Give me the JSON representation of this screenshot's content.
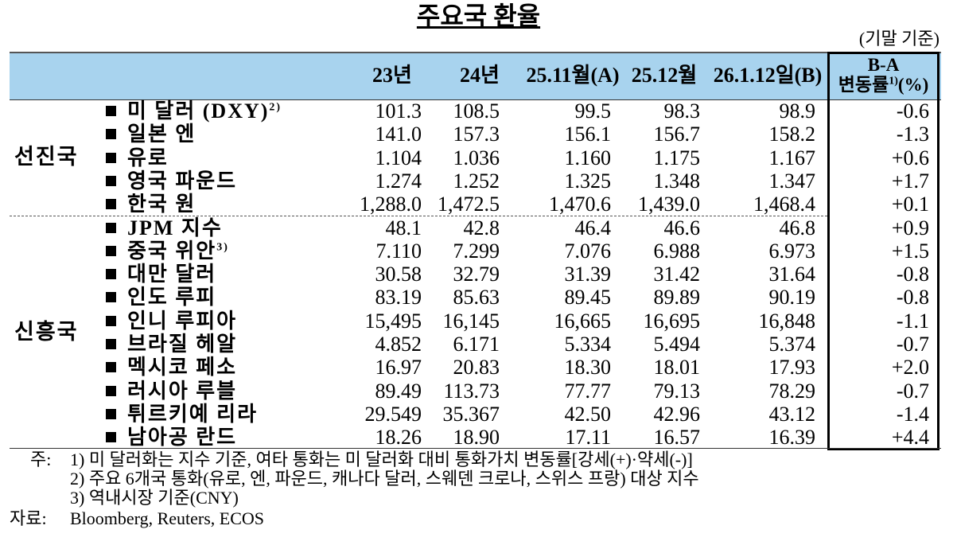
{
  "title": "주요국 환율",
  "unit_note": "(기말 기준)",
  "header": {
    "columns": [
      "23년",
      "24년",
      "25.11월(A)",
      "25.12월",
      "26.1.12일(B)"
    ],
    "change": {
      "line1": "B-A",
      "line2": "변동률",
      "sup": "1)",
      "unit": "(%)"
    }
  },
  "groups": [
    {
      "label": "선진국",
      "rows": [
        {
          "name": "미 달러 (DXY)",
          "sup": "2)",
          "values": [
            "101.3",
            "108.5",
            "99.5",
            "98.3",
            "98.9",
            "-0.6"
          ]
        },
        {
          "name": "일본 엔",
          "values": [
            "141.0",
            "157.3",
            "156.1",
            "156.7",
            "158.2",
            "-1.3"
          ]
        },
        {
          "name": "유로",
          "values": [
            "1.104",
            "1.036",
            "1.160",
            "1.175",
            "1.167",
            "+0.6"
          ]
        },
        {
          "name": "영국 파운드",
          "values": [
            "1.274",
            "1.252",
            "1.325",
            "1.348",
            "1.347",
            "+1.7"
          ]
        },
        {
          "name": "한국 원",
          "values": [
            "1,288.0",
            "1,472.5",
            "1,470.6",
            "1,439.0",
            "1,468.4",
            "+0.1"
          ]
        }
      ]
    },
    {
      "label": "신흥국",
      "rows": [
        {
          "name": "JPM 지수",
          "values": [
            "48.1",
            "42.8",
            "46.4",
            "46.6",
            "46.8",
            "+0.9"
          ]
        },
        {
          "name": "중국 위안",
          "sup": "3)",
          "values": [
            "7.110",
            "7.299",
            "7.076",
            "6.988",
            "6.973",
            "+1.5"
          ]
        },
        {
          "name": "대만 달러",
          "values": [
            "30.58",
            "32.79",
            "31.39",
            "31.42",
            "31.64",
            "-0.8"
          ]
        },
        {
          "name": "인도 루피",
          "values": [
            "83.19",
            "85.63",
            "89.45",
            "89.89",
            "90.19",
            "-0.8"
          ]
        },
        {
          "name": "인니 루피아",
          "values": [
            "15,495",
            "16,145",
            "16,665",
            "16,695",
            "16,848",
            "-1.1"
          ]
        },
        {
          "name": "브라질 헤알",
          "values": [
            "4.852",
            "6.171",
            "5.334",
            "5.494",
            "5.374",
            "-0.7"
          ]
        },
        {
          "name": "멕시코 페소",
          "values": [
            "16.97",
            "20.83",
            "18.30",
            "18.01",
            "17.93",
            "+2.0"
          ]
        },
        {
          "name": "러시아 루블",
          "values": [
            "89.49",
            "113.73",
            "77.77",
            "79.13",
            "78.29",
            "-0.7"
          ]
        },
        {
          "name": "튀르키예 리라",
          "values": [
            "29.549",
            "35.367",
            "42.50",
            "42.96",
            "43.12",
            "-1.4"
          ]
        },
        {
          "name": "남아공 란드",
          "values": [
            "18.26",
            "18.90",
            "17.11",
            "16.57",
            "16.39",
            "+4.4"
          ]
        }
      ]
    }
  ],
  "notes": {
    "prefix": "주:",
    "items": [
      "1) 미 달러화는 지수 기준, 여타 통화는 미 달러화 대비 통화가치 변동률[강세(+)·약세(-)]",
      "2) 주요 6개국 통화(유로, 엔, 파운드, 캐나다 달러, 스웨덴 크로나, 스위스 프랑) 대상 지수",
      "3) 역내시장 기준(CNY)"
    ]
  },
  "source": {
    "label": "자료:",
    "text": "Bloomberg, Reuters, ECOS"
  }
}
